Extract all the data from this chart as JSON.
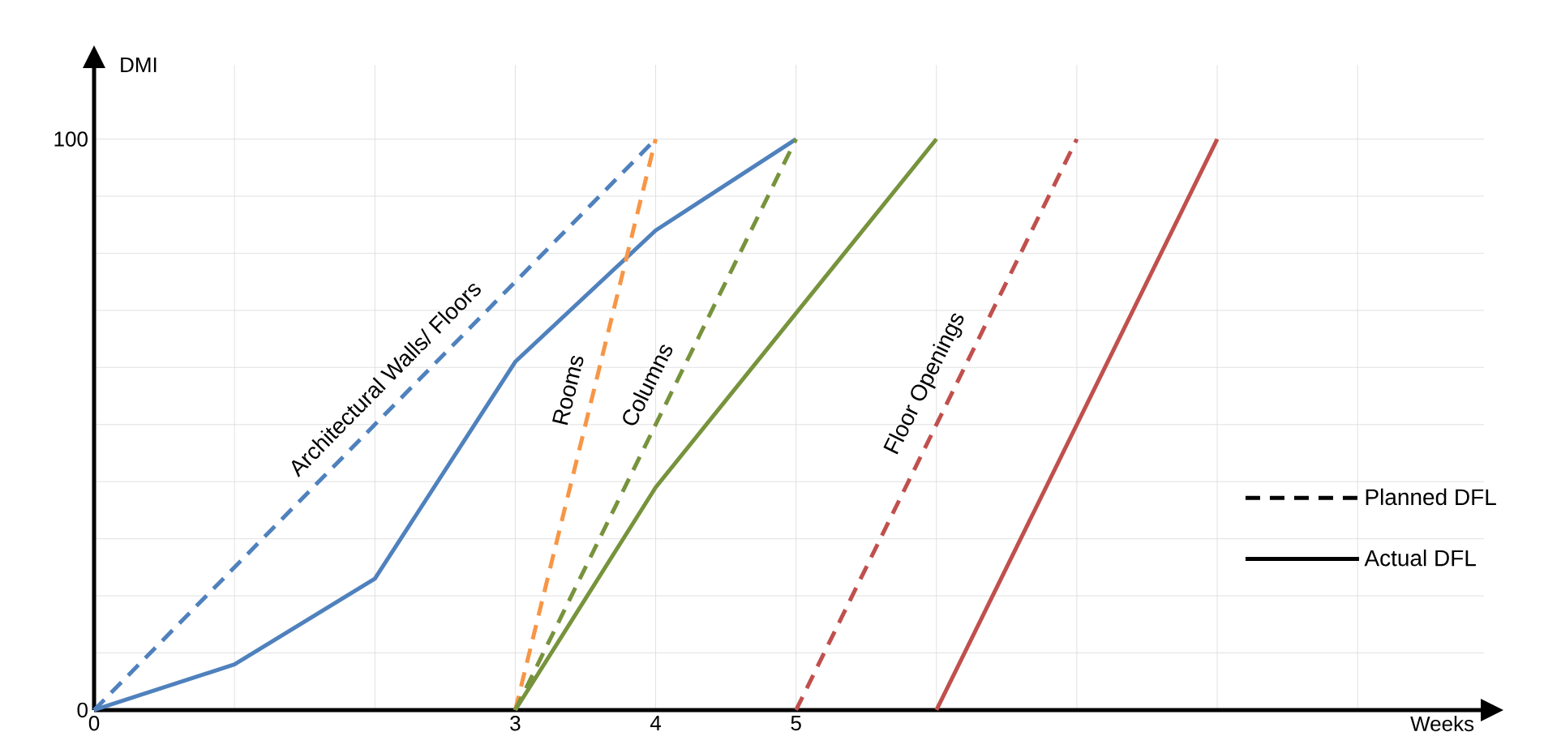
{
  "chart_data": {
    "type": "line",
    "xlabel": "Weeks",
    "ylabel": "DMI",
    "xlim": [
      0,
      9.9
    ],
    "ylim": [
      0,
      113
    ],
    "xticks": [
      0,
      {
        "value": 1,
        "label": null
      },
      {
        "value": 2,
        "label": null
      },
      3,
      4,
      5,
      {
        "value": 6,
        "label": null
      },
      {
        "value": 7,
        "label": null
      },
      {
        "value": 8,
        "label": null
      },
      {
        "value": 9,
        "label": null
      }
    ],
    "yticks": [
      0,
      {
        "value": 10,
        "label": null
      },
      {
        "value": 20,
        "label": null
      },
      {
        "value": 30,
        "label": null
      },
      {
        "value": 40,
        "label": null
      },
      {
        "value": 50,
        "label": null
      },
      {
        "value": 60,
        "label": null
      },
      {
        "value": 70,
        "label": null
      },
      {
        "value": 80,
        "label": null
      },
      {
        "value": 90,
        "label": null
      },
      100
    ],
    "grid": true,
    "marker": "none",
    "series": [
      {
        "name": "Architectural Walls/ Floors",
        "color": "#4f81bd",
        "line_style": "dashed",
        "x": [
          0,
          4
        ],
        "values": [
          0,
          100
        ]
      },
      {
        "color": "#4f81bd",
        "line_style": "solid",
        "x": [
          0,
          1,
          2,
          3,
          4,
          5
        ],
        "values": [
          0,
          8,
          23,
          61,
          84,
          100
        ]
      },
      {
        "name": "Rooms",
        "color": "#f79646",
        "line_style": "dashed",
        "x": [
          3,
          4
        ],
        "values": [
          0,
          100
        ]
      },
      {
        "name": "Columns",
        "color": "#77933c",
        "line_style": "dashed",
        "x": [
          3,
          5
        ],
        "values": [
          0,
          100
        ]
      },
      {
        "color": "#77933c",
        "line_style": "solid",
        "x": [
          3,
          4,
          6
        ],
        "values": [
          0,
          39,
          100
        ]
      },
      {
        "name": "Floor Openings",
        "color": "#c0504d",
        "line_style": "dashed",
        "x": [
          5,
          7
        ],
        "values": [
          0,
          100
        ]
      },
      {
        "color": "#c0504d",
        "line_style": "solid",
        "x": [
          6,
          8
        ],
        "values": [
          0,
          100
        ]
      }
    ],
    "annotations": [
      "Planned DFL",
      "Actual DFL"
    ]
  }
}
